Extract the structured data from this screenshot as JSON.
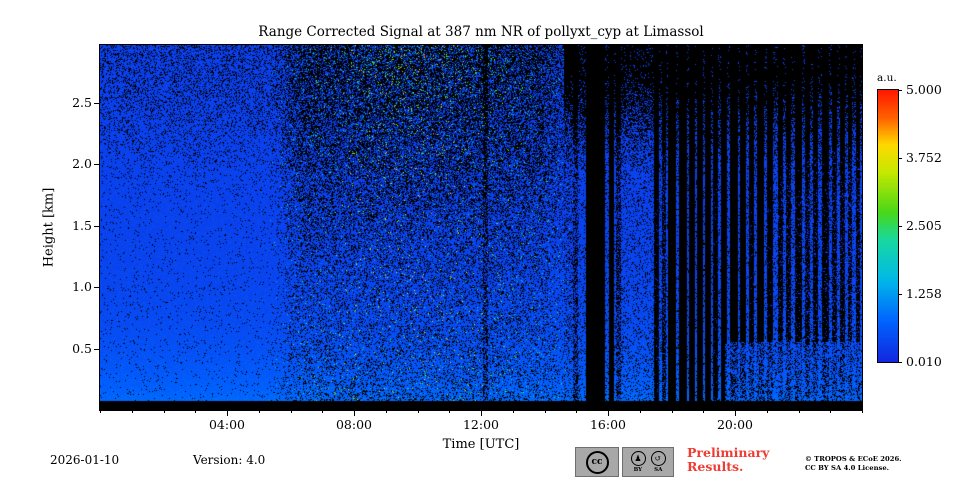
{
  "figure": {
    "title": "Range Corrected Signal at 387 nm NR of pollyxt_cyp at Limassol"
  },
  "footer": {
    "date": "2026-01-10",
    "version": "Version: 4.0",
    "preliminary": [
      "Preliminary",
      "Results."
    ],
    "preliminary_color": "#ee3b33",
    "copyright": [
      "© TROPOS & ECoE 2026.",
      "CC BY SA 4.0 License."
    ],
    "badge": {
      "cc_glyph": "cc",
      "by_glyph": "♟",
      "sa_glyph": "↺",
      "by_label": "BY",
      "sa_label": "SA"
    }
  },
  "chart_data": {
    "type": "heatmap",
    "title": "Range Corrected Signal at 387 nm NR of pollyxt_cyp at Limassol",
    "xlabel": "Time [UTC]",
    "ylabel": "Height [km]",
    "xlim_hours": [
      0,
      24
    ],
    "ylim_km": [
      0,
      2.97
    ],
    "x_ticks": [
      {
        "hour": 4,
        "label": "04:00"
      },
      {
        "hour": 8,
        "label": "08:00"
      },
      {
        "hour": 12,
        "label": "12:00"
      },
      {
        "hour": 16,
        "label": "16:00"
      },
      {
        "hour": 20,
        "label": "20:00"
      }
    ],
    "x_minor_every_hours": 1,
    "y_ticks": [
      {
        "km": 0.5,
        "label": "0.5"
      },
      {
        "km": 1.0,
        "label": "1.0"
      },
      {
        "km": 1.5,
        "label": "1.5"
      },
      {
        "km": 2.0,
        "label": "2.0"
      },
      {
        "km": 2.5,
        "label": "2.5"
      }
    ],
    "colorbar": {
      "label": "a.u.",
      "tick_labels": [
        "5.000",
        "3.752",
        "2.505",
        "1.258",
        "0.010"
      ],
      "vmin": 0.01,
      "vmax": 5.0,
      "colormap": "jet",
      "stops": [
        [
          0.0,
          "#1228e0"
        ],
        [
          0.15,
          "#0064ff"
        ],
        [
          0.3,
          "#00b8e8"
        ],
        [
          0.45,
          "#18d8a0"
        ],
        [
          0.55,
          "#48d818"
        ],
        [
          0.7,
          "#c8e800"
        ],
        [
          0.8,
          "#ffd800"
        ],
        [
          0.9,
          "#ff6000"
        ],
        [
          1.0,
          "#ff1800"
        ]
      ]
    },
    "description": "Lidar range-corrected signal quicklook: low blue aerosol signal near surface, noisy green/yellow speckle aloft 06:00-14:00, black attenuation columns 15:30-24:00, solid black surface band.",
    "features": {
      "background_signal_au": [
        0.2,
        0.9
      ],
      "enhanced_noise_region": {
        "t_hours": [
          5.5,
          14.5
        ],
        "h_km": [
          1.0,
          2.97
        ],
        "peak_t_hour": 10,
        "max_au": 3.8
      },
      "attenuation_periods_hours": [
        [
          15.3,
          15.9
        ],
        [
          16.0,
          16.4
        ],
        [
          17.4,
          19.6
        ],
        [
          19.8,
          21.8
        ],
        [
          22.0,
          24.0
        ]
      ],
      "surface_band": "black below ~0.08 km"
    },
    "render": {
      "seed": 42,
      "surface_band_km": 0.075,
      "speckle_base": 0.035,
      "base": {
        "v0": 0.22,
        "amp": 0.55,
        "scale_km": 0.5,
        "noise": 0.2
      },
      "high_alt_speckle": {
        "h0": 1.5,
        "h1": 2.9,
        "p": 0.22
      },
      "mid_period": {
        "t_start": 5.2,
        "t_full": 6.5,
        "t_fade0": 13.8,
        "t_fade1": 15.2,
        "extra_black": 0.18,
        "alt_black": 0.18
      },
      "plume": {
        "t_center": 10,
        "t_sigma": 3.4,
        "p_low": 0.05,
        "p_mid": 0.12,
        "p_top": 0.2,
        "v_min": 0.6,
        "v_span": 3.1
      },
      "right_black": {
        "t0": 14.6,
        "p_base": 0.12,
        "h0": 1.9,
        "h1": 2.8,
        "p_alt": 0.55
      },
      "stripe_bottom_clear": {
        "t0": 19.7,
        "h": 0.55,
        "factor": 0.35
      },
      "stripes": [
        [
          12.05,
          12.22,
          0.3
        ],
        [
          14.9,
          15.05,
          0.35
        ],
        [
          15.3,
          15.9,
          0.97
        ],
        [
          16.02,
          16.18,
          0.85
        ],
        [
          16.25,
          16.4,
          0.45
        ],
        [
          17.45,
          17.62,
          0.8
        ],
        [
          17.7,
          17.82,
          0.6
        ],
        [
          17.9,
          18.15,
          0.85
        ],
        [
          18.25,
          18.5,
          0.95
        ],
        [
          18.55,
          18.75,
          0.9
        ],
        [
          18.8,
          19.0,
          0.85
        ],
        [
          19.05,
          19.25,
          0.9
        ],
        [
          19.3,
          19.45,
          0.8
        ],
        [
          19.55,
          19.75,
          0.9
        ],
        [
          19.85,
          20.1,
          0.95
        ],
        [
          20.15,
          20.35,
          0.9
        ],
        [
          20.45,
          20.6,
          0.8
        ],
        [
          20.7,
          20.9,
          0.85
        ],
        [
          21.0,
          21.2,
          0.8
        ],
        [
          21.35,
          21.5,
          0.75
        ],
        [
          21.6,
          21.75,
          0.7
        ],
        [
          21.9,
          22.1,
          0.75
        ],
        [
          22.2,
          22.35,
          0.65
        ],
        [
          22.45,
          22.6,
          0.7
        ],
        [
          22.75,
          22.95,
          0.75
        ],
        [
          23.05,
          23.2,
          0.65
        ],
        [
          23.3,
          23.45,
          0.7
        ],
        [
          23.55,
          23.7,
          0.6
        ],
        [
          23.8,
          23.95,
          0.65
        ]
      ]
    }
  }
}
